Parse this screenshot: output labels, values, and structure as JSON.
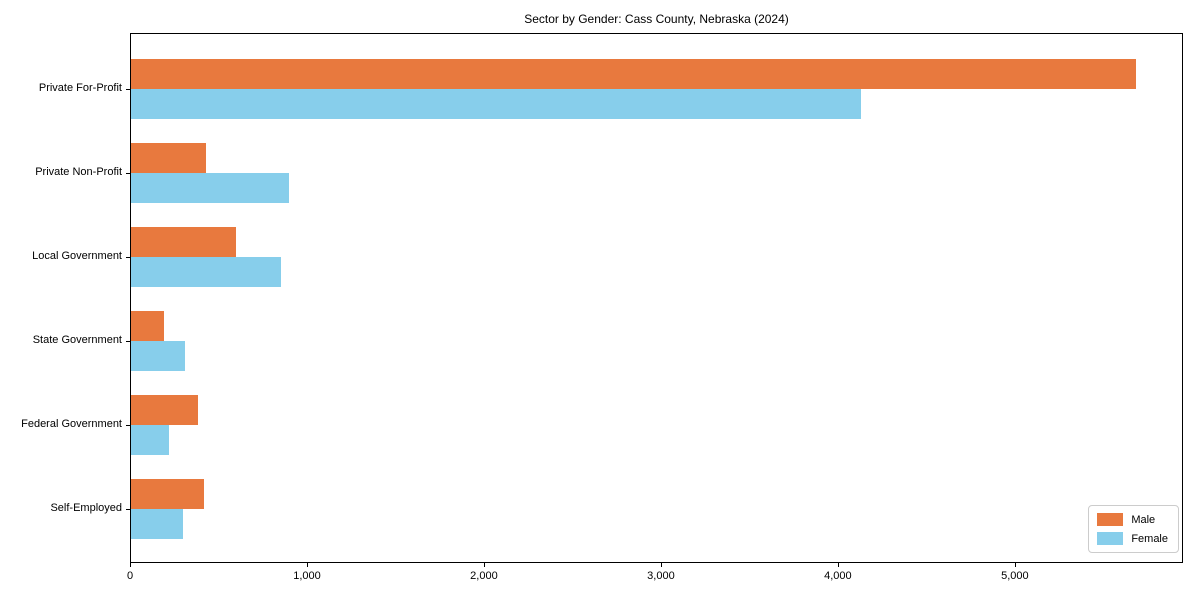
{
  "chart_data": {
    "type": "bar",
    "orientation": "horizontal",
    "title": "Sector by Gender: Cass County, Nebraska (2024)",
    "categories": [
      "Private For-Profit",
      "Private Non-Profit",
      "Local Government",
      "State Government",
      "Federal Government",
      "Self-Employed"
    ],
    "series": [
      {
        "name": "Male",
        "color": "#E8793E",
        "values": [
          5680,
          425,
          595,
          185,
          380,
          410
        ]
      },
      {
        "name": "Female",
        "color": "#87CEEB",
        "values": [
          4125,
          895,
          850,
          305,
          215,
          295
        ]
      }
    ],
    "xlim": [
      0,
      5950
    ],
    "x_ticks": [
      0,
      1000,
      2000,
      3000,
      4000,
      5000
    ],
    "x_tick_labels": [
      "0",
      "1,000",
      "2,000",
      "3,000",
      "4,000",
      "5,000"
    ],
    "xlabel": "",
    "ylabel": "",
    "grid": false,
    "legend_position": "lower right",
    "background_color": "#ffffff",
    "spine_color": "#000000"
  }
}
